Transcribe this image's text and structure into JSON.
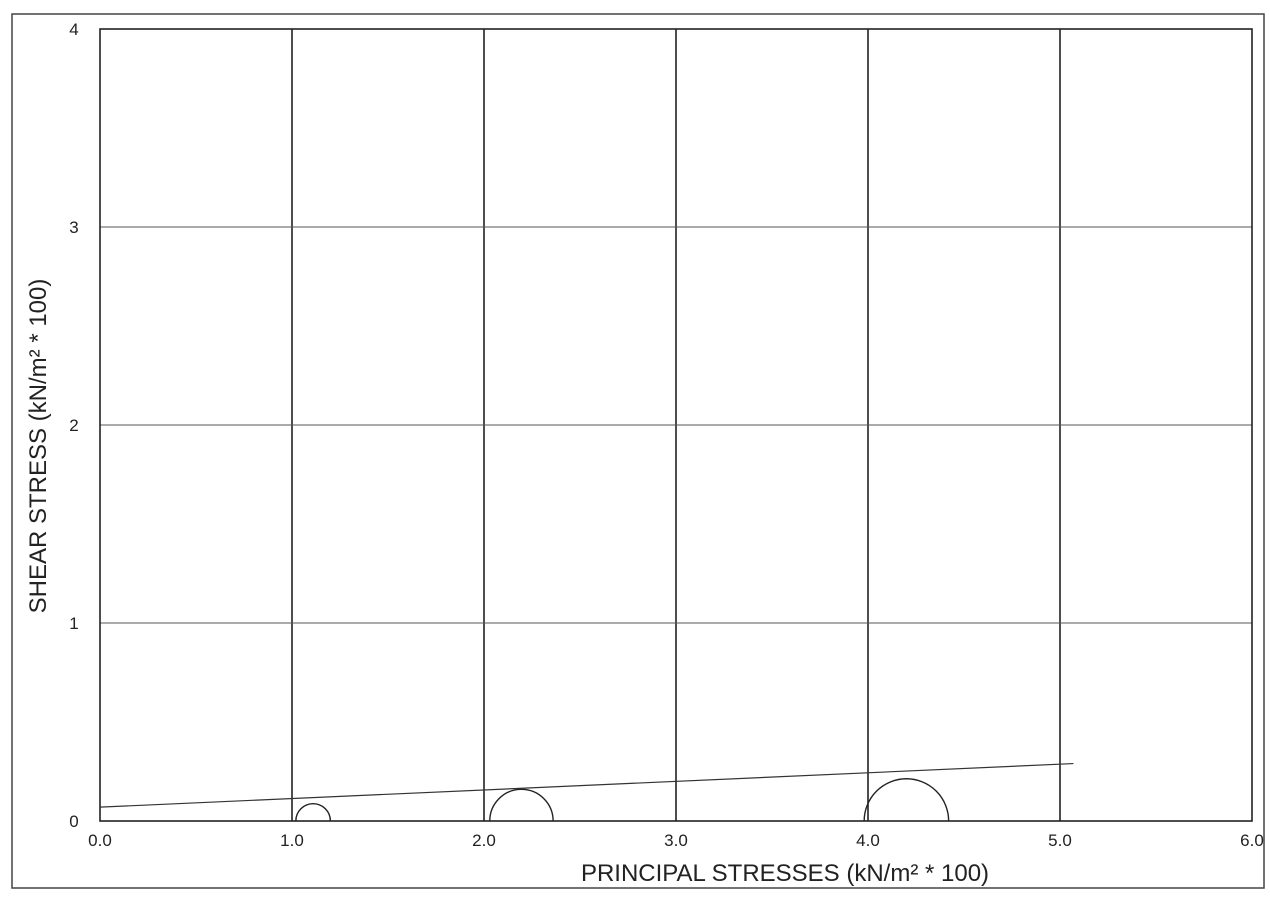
{
  "chart_data": {
    "type": "scatter",
    "title": "",
    "xlabel": "PRINCIPAL STRESSES (kN/m² * 100)",
    "ylabel": "SHEAR STRESS (kN/m² * 100)",
    "xlim": [
      0,
      6
    ],
    "ylim": [
      0,
      4
    ],
    "x_ticks": [
      "0.0",
      "1.0",
      "2.0",
      "3.0",
      "4.0",
      "5.0",
      "6.0"
    ],
    "y_ticks": [
      "0",
      "1",
      "2",
      "3",
      "4"
    ],
    "grid": true,
    "mohr_circles": [
      {
        "sigma3": 1.02,
        "sigma1": 1.2
      },
      {
        "sigma3": 2.03,
        "sigma1": 2.36
      },
      {
        "sigma3": 3.98,
        "sigma1": 4.42
      }
    ],
    "failure_envelope": {
      "x": [
        0.0,
        5.07
      ],
      "y": [
        0.07,
        0.29
      ]
    }
  }
}
